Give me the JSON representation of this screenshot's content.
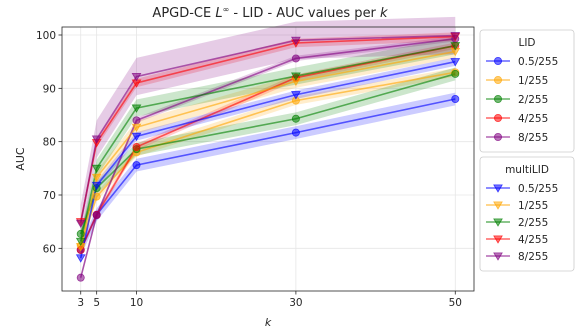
{
  "chart_data": {
    "type": "line",
    "title": "APGD-CE L∞ - LID - AUC values per k",
    "title_parts": {
      "prefix": "APGD-CE ",
      "symbol": "L",
      "sup": "∞",
      "suffix": " - LID - AUC values per ",
      "k": "k"
    },
    "xlabel": "k",
    "ylabel": "AUC",
    "x": [
      3,
      5,
      10,
      30,
      50
    ],
    "xticks": [
      3,
      5,
      10,
      30,
      50
    ],
    "yticks": [
      60,
      70,
      80,
      90,
      100
    ],
    "xlim": [
      0.65,
      52.35
    ],
    "ylim": [
      52,
      101.5
    ],
    "grid": true,
    "legend_placement": "right",
    "groups": [
      {
        "title": "LID",
        "marker": "circle",
        "series": [
          {
            "name": "0.5/255",
            "color": "#0000ff",
            "values": [
              59.7,
              66.3,
              75.6,
              81.7,
              88.0
            ],
            "band": 1.2
          },
          {
            "name": "1/255",
            "color": "#ffa500",
            "values": [
              60.5,
              69.7,
              78.0,
              87.7,
              93.0
            ],
            "band": 0.8
          },
          {
            "name": "2/255",
            "color": "#008000",
            "values": [
              62.7,
              71.3,
              78.6,
              84.3,
              92.7
            ],
            "band": 1.2
          },
          {
            "name": "4/255",
            "color": "#ff0000",
            "values": [
              59.7,
              66.3,
              79.0,
              92.0,
              98.0
            ],
            "band": 0.6
          },
          {
            "name": "8/255",
            "color": "#800080",
            "values": [
              54.5,
              66.2,
              84.0,
              95.6,
              99.3
            ],
            "band": 0.5
          }
        ]
      },
      {
        "title": "multiLID",
        "marker": "triangle",
        "series": [
          {
            "name": "0.5/255",
            "color": "#0000ff",
            "values": [
              58.2,
              71.8,
              81.0,
              88.8,
              95.0
            ],
            "band": 0.8
          },
          {
            "name": "1/255",
            "color": "#ffa500",
            "values": [
              60.3,
              73.3,
              82.7,
              91.3,
              96.9
            ],
            "band": 1.2
          },
          {
            "name": "2/255",
            "color": "#008000",
            "values": [
              61.3,
              75.0,
              86.3,
              92.3,
              98.0
            ],
            "band": 1.6
          },
          {
            "name": "4/255",
            "color": "#ff0000",
            "values": [
              65.0,
              79.8,
              91.0,
              98.5,
              99.7
            ],
            "band": 0.8
          },
          {
            "name": "8/255",
            "color": "#800080",
            "values": [
              64.7,
              80.5,
              92.2,
              99.0,
              99.9
            ],
            "band": 3.5
          }
        ]
      }
    ]
  }
}
